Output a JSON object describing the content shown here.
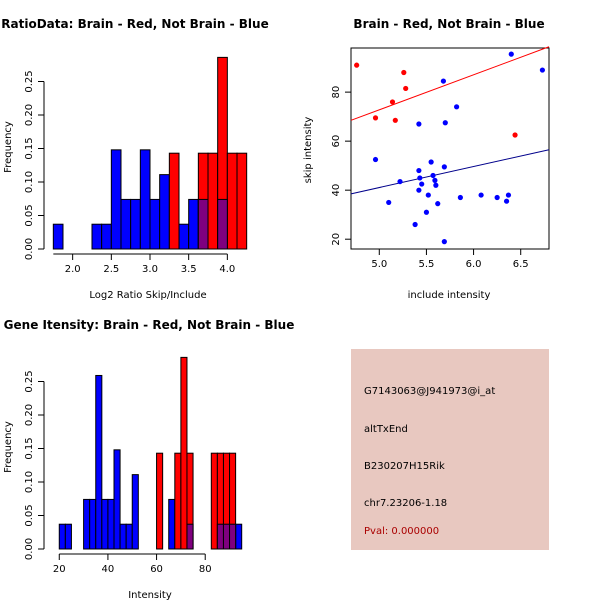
{
  "colors": {
    "red": "#ff0000",
    "blue": "#0000ff",
    "overlap": "#7f007f",
    "line_red": "#ff0000",
    "line_blue": "#00008b",
    "panel": "#e8c8c0",
    "pval": "#aa0000"
  },
  "chart_data": [
    {
      "id": "ratio",
      "type": "bar",
      "title": "RatioData: Brain - Red, Not Brain - Blue",
      "xlabel": "Log2 Ratio Skip/Include",
      "ylabel": "Frequency",
      "xlim": [
        1.72,
        4.28
      ],
      "ylim": [
        0,
        0.3
      ],
      "xticks": [
        2.0,
        2.5,
        3.0,
        3.5,
        4.0
      ],
      "xtick_labels": [
        "2.0",
        "2.5",
        "3.0",
        "3.5",
        "4.0"
      ],
      "yticks": [
        0,
        0.05,
        0.1,
        0.15,
        0.2,
        0.25
      ],
      "ytick_labels": [
        "0.00",
        "0.05",
        "0.10",
        "0.15",
        "0.20",
        "0.25"
      ],
      "series": [
        {
          "name": "Not Brain",
          "color": "blue",
          "bins": [
            [
              1.75,
              1.875,
              0.037
            ],
            [
              2.25,
              2.375,
              0.037
            ],
            [
              2.375,
              2.5,
              0.037
            ],
            [
              2.5,
              2.625,
              0.148
            ],
            [
              2.625,
              2.75,
              0.074
            ],
            [
              2.75,
              2.875,
              0.074
            ],
            [
              2.875,
              3.0,
              0.148
            ],
            [
              3.0,
              3.125,
              0.074
            ],
            [
              3.125,
              3.25,
              0.111
            ],
            [
              3.375,
              3.5,
              0.037
            ],
            [
              3.5,
              3.625,
              0.074
            ],
            [
              3.625,
              3.75,
              0.074
            ],
            [
              3.875,
              4.0,
              0.074
            ]
          ]
        },
        {
          "name": "Brain",
          "color": "red",
          "bins": [
            [
              3.25,
              3.375,
              0.143
            ],
            [
              3.625,
              3.75,
              0.143
            ],
            [
              3.75,
              3.875,
              0.143
            ],
            [
              3.875,
              4.0,
              0.286
            ],
            [
              4.0,
              4.125,
              0.143
            ],
            [
              4.125,
              4.25,
              0.143
            ]
          ]
        }
      ]
    },
    {
      "id": "scatter",
      "type": "scatter",
      "title": "Brain - Red, Not Brain - Blue",
      "xlabel": "include intensity",
      "ylabel": "skip intensity",
      "xlim": [
        4.7,
        6.8
      ],
      "ylim": [
        16,
        98
      ],
      "xticks": [
        5.0,
        5.5,
        6.0,
        6.5
      ],
      "xtick_labels": [
        "5.0",
        "5.5",
        "6.0",
        "6.5"
      ],
      "yticks": [
        20,
        40,
        60,
        80
      ],
      "ytick_labels": [
        "20",
        "40",
        "60",
        "80"
      ],
      "series": [
        {
          "name": "Brain",
          "color": "red",
          "points": [
            [
              4.76,
              91.0
            ],
            [
              4.96,
              69.5
            ],
            [
              5.14,
              76.0
            ],
            [
              5.17,
              68.5
            ],
            [
              5.26,
              88.0
            ],
            [
              5.28,
              81.5
            ],
            [
              6.44,
              62.5
            ]
          ],
          "fit": [
            [
              4.7,
              68.5
            ],
            [
              6.8,
              98.5
            ]
          ]
        },
        {
          "name": "Not Brain",
          "color": "blue",
          "points": [
            [
              4.96,
              52.5
            ],
            [
              5.1,
              35.0
            ],
            [
              5.22,
              43.5
            ],
            [
              5.38,
              26.0
            ],
            [
              5.42,
              48.0
            ],
            [
              5.43,
              45.0
            ],
            [
              5.42,
              67.0
            ],
            [
              5.42,
              40.0
            ],
            [
              5.45,
              42.5
            ],
            [
              5.5,
              31.0
            ],
            [
              5.52,
              38.0
            ],
            [
              5.55,
              51.5
            ],
            [
              5.57,
              46.0
            ],
            [
              5.59,
              44.0
            ],
            [
              5.6,
              42.0
            ],
            [
              5.62,
              34.5
            ],
            [
              5.68,
              84.5
            ],
            [
              5.69,
              49.5
            ],
            [
              5.7,
              67.5
            ],
            [
              5.69,
              19.0
            ],
            [
              5.82,
              74.0
            ],
            [
              5.86,
              37.0
            ],
            [
              6.08,
              38.0
            ],
            [
              6.25,
              37.0
            ],
            [
              6.35,
              35.5
            ],
            [
              6.37,
              38.0
            ],
            [
              6.4,
              95.5
            ],
            [
              6.73,
              89.0
            ]
          ],
          "fit": [
            [
              4.7,
              38.5
            ],
            [
              6.8,
              56.5
            ]
          ]
        }
      ]
    },
    {
      "id": "intensity",
      "type": "bar",
      "title": "Gene Itensity: Brain - Red, Not Brain - Blue",
      "xlabel": "Intensity",
      "ylabel": "Frequency",
      "xlim": [
        16.6,
        98.0
      ],
      "ylim": [
        0,
        0.3
      ],
      "xticks": [
        20,
        40,
        60,
        80
      ],
      "xtick_labels": [
        "20",
        "40",
        "60",
        "80"
      ],
      "yticks": [
        0,
        0.05,
        0.1,
        0.15,
        0.2,
        0.25
      ],
      "ytick_labels": [
        "0.00",
        "0.05",
        "0.10",
        "0.15",
        "0.20",
        "0.25"
      ],
      "series": [
        {
          "name": "Not Brain",
          "color": "blue",
          "bins": [
            [
              20,
              22.5,
              0.037
            ],
            [
              22.5,
              25,
              0.037
            ],
            [
              30,
              32.5,
              0.074
            ],
            [
              32.5,
              35,
              0.074
            ],
            [
              35,
              37.5,
              0.259
            ],
            [
              37.5,
              40,
              0.074
            ],
            [
              40,
              42.5,
              0.074
            ],
            [
              42.5,
              45,
              0.148
            ],
            [
              45,
              47.5,
              0.037
            ],
            [
              47.5,
              50,
              0.037
            ],
            [
              50,
              52.5,
              0.111
            ],
            [
              65,
              67.5,
              0.074
            ],
            [
              72.5,
              75,
              0.037
            ],
            [
              85,
              87.5,
              0.037
            ],
            [
              87.5,
              90,
              0.037
            ],
            [
              90,
              92.5,
              0.037
            ],
            [
              92.5,
              95,
              0.037
            ]
          ]
        },
        {
          "name": "Brain",
          "color": "red",
          "bins": [
            [
              60,
              62.5,
              0.143
            ],
            [
              67.5,
              70,
              0.143
            ],
            [
              70,
              72.5,
              0.286
            ],
            [
              72.5,
              75,
              0.143
            ],
            [
              82.5,
              85,
              0.143
            ],
            [
              85,
              87.5,
              0.143
            ],
            [
              87.5,
              90,
              0.143
            ],
            [
              90,
              92.5,
              0.143
            ]
          ]
        }
      ]
    }
  ],
  "info": {
    "probe_id": "G7143063@J941973@i_at",
    "event_type": "altTxEnd",
    "gene_name": "B230207H15Rik",
    "location": "chr7.23206-1.18",
    "pval": "Pval: 0.000000"
  }
}
